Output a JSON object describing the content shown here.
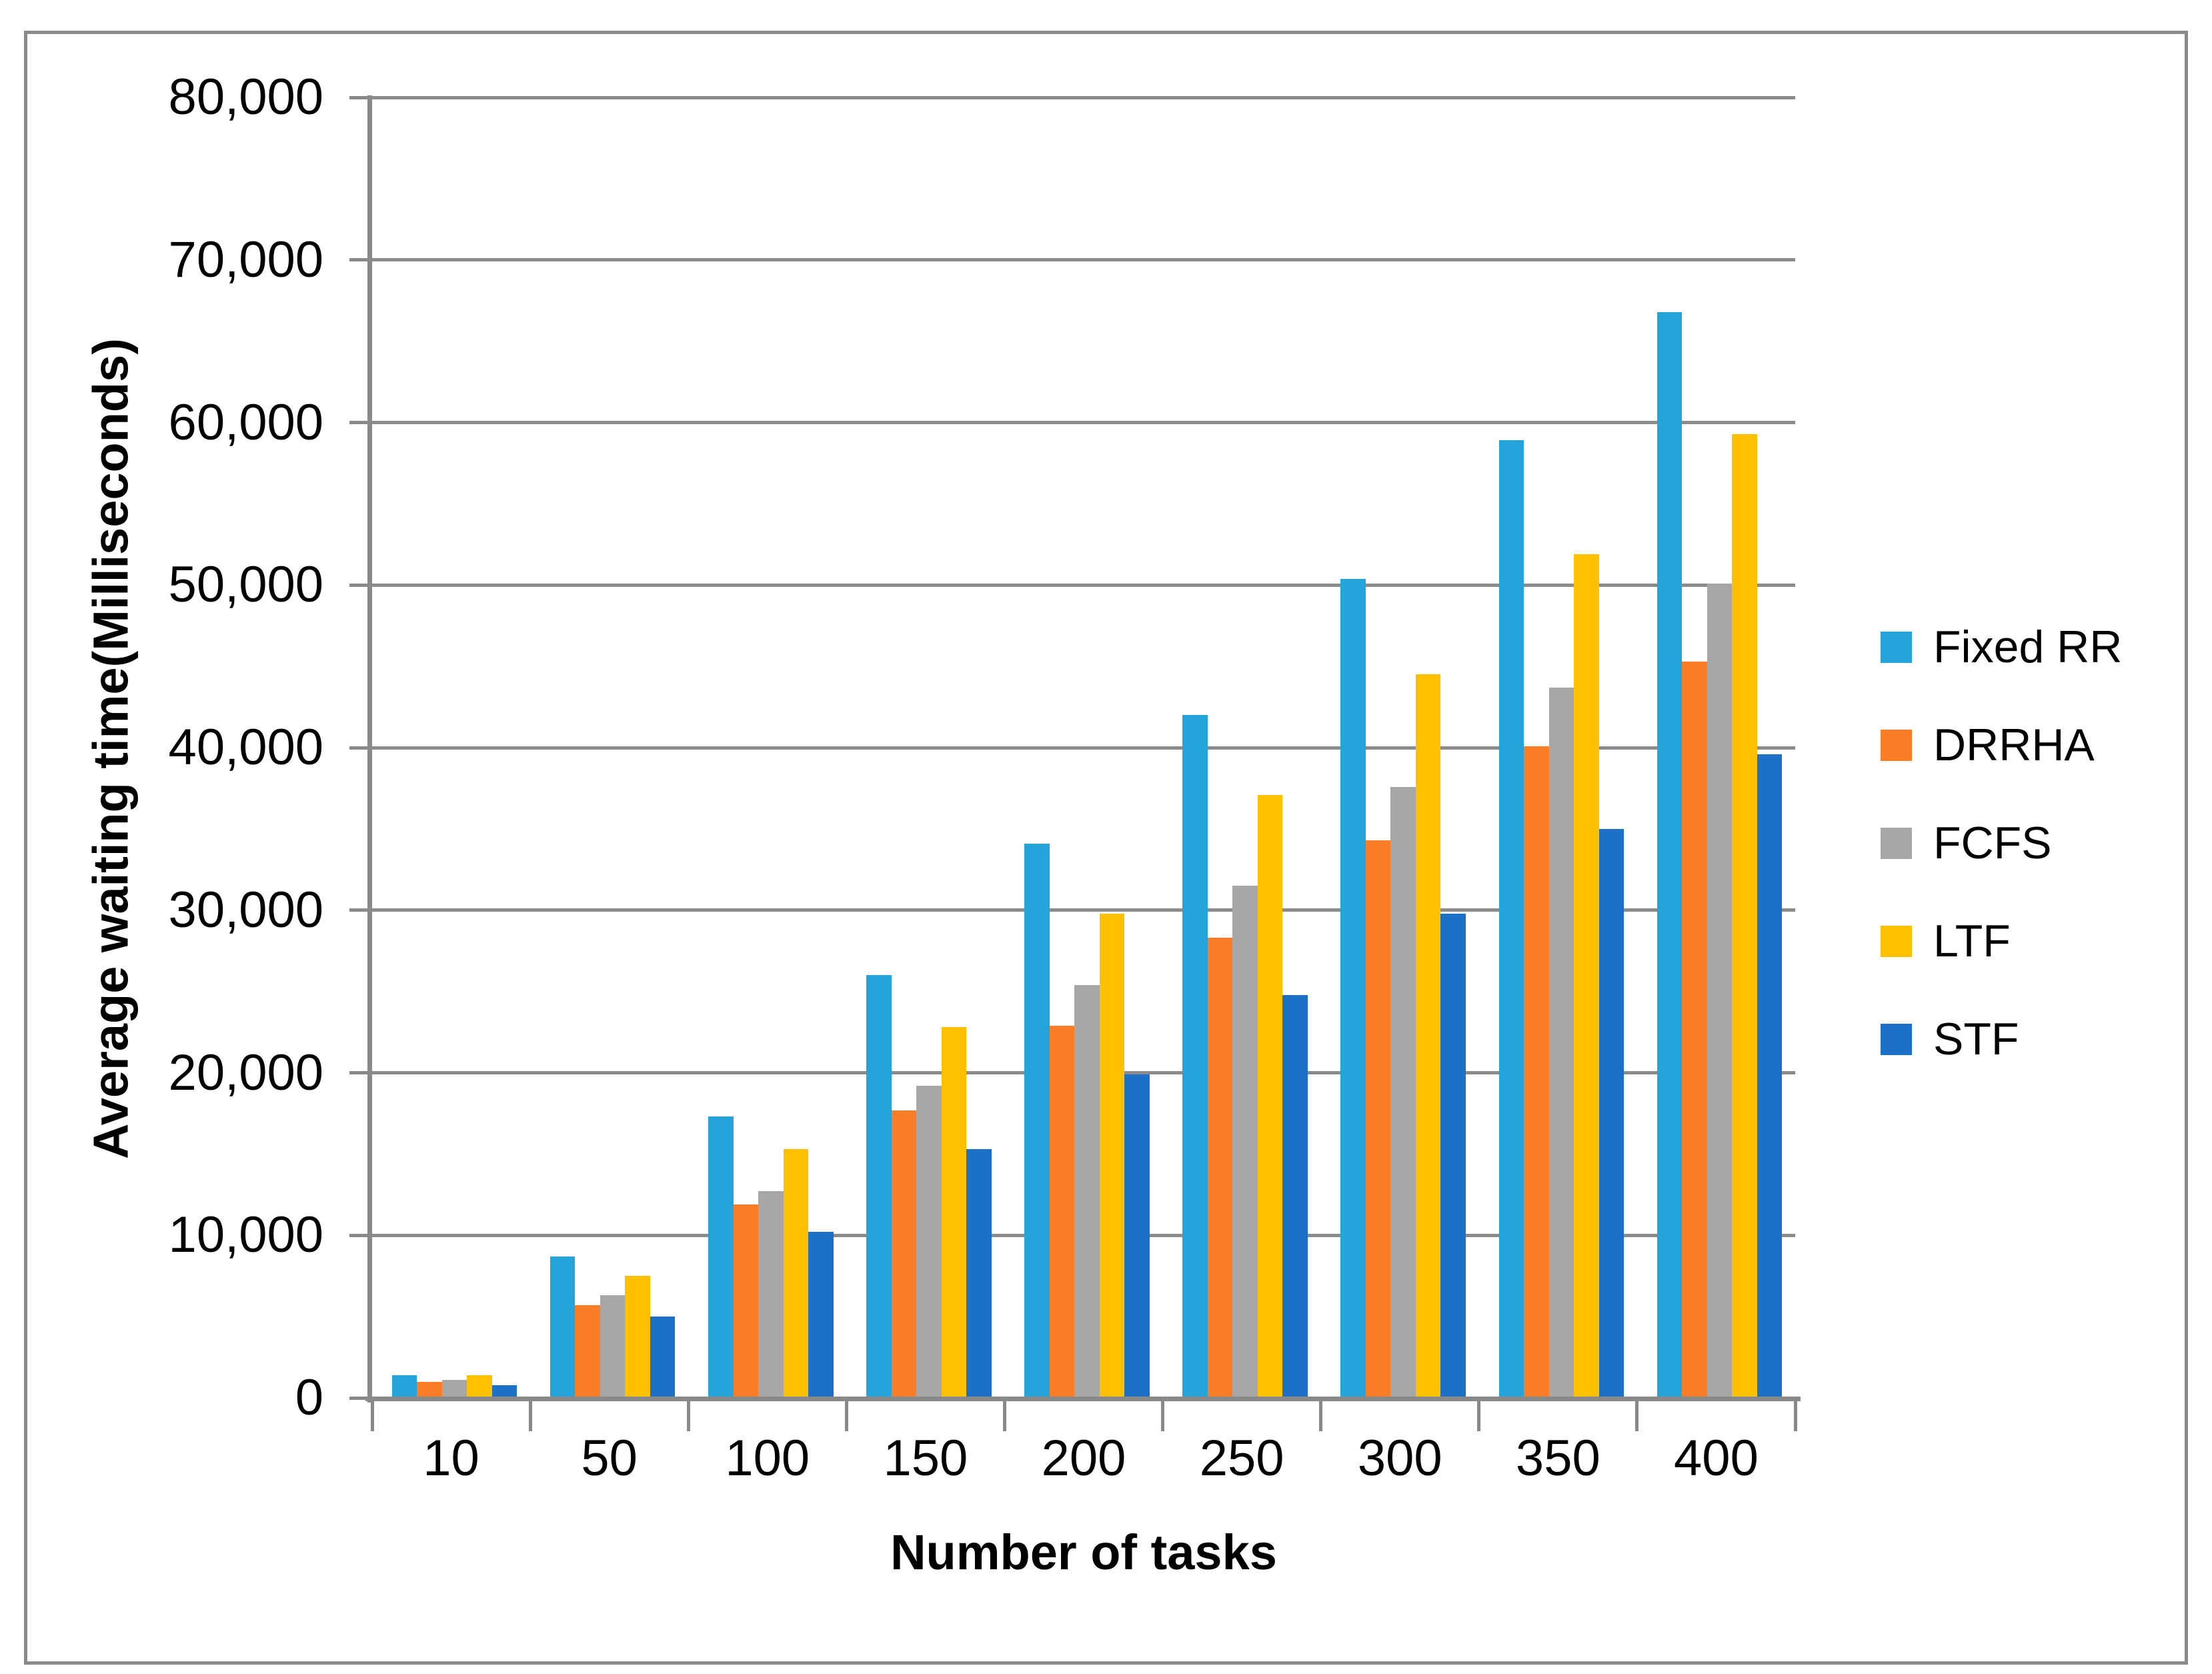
{
  "chart_data": {
    "type": "bar",
    "categories": [
      "10",
      "50",
      "100",
      "150",
      "200",
      "250",
      "300",
      "350",
      "400"
    ],
    "series": [
      {
        "name": "Fixed RR",
        "color": "#25A3DB",
        "values": [
          1400,
          8700,
          17300,
          26000,
          34100,
          42000,
          50400,
          58900,
          66800
        ]
      },
      {
        "name": "DRRHA",
        "color": "#FB7D27",
        "values": [
          1000,
          5700,
          11900,
          17700,
          22900,
          28300,
          34300,
          40100,
          45300
        ]
      },
      {
        "name": "FCFS",
        "color": "#A7A7A7",
        "values": [
          1100,
          6300,
          12700,
          19200,
          25400,
          31500,
          37600,
          43700,
          50100
        ]
      },
      {
        "name": "LTF",
        "color": "#FFC000",
        "values": [
          1400,
          7500,
          15300,
          22800,
          29800,
          37100,
          44500,
          51900,
          59300
        ]
      },
      {
        "name": "STF",
        "color": "#1C71C7",
        "values": [
          800,
          5000,
          10200,
          15300,
          19900,
          24800,
          29800,
          35000,
          39600
        ]
      }
    ],
    "title": "",
    "xlabel": "Number of tasks",
    "ylabel": "Average waiting time(Milliseconds)",
    "ylim": [
      0,
      80000
    ],
    "y_tick_step": 10000,
    "y_tick_labels": [
      "0",
      "10,000",
      "20,000",
      "30,000",
      "40,000",
      "50,000",
      "60,000",
      "70,000",
      "80,000"
    ],
    "grid": "horizontal-only",
    "legend_position": "right"
  },
  "colors": {
    "gridline": "#8B8B8B",
    "axis": "#898989",
    "figure_border": "#8A8A8A",
    "background": "#FFFFFF"
  }
}
